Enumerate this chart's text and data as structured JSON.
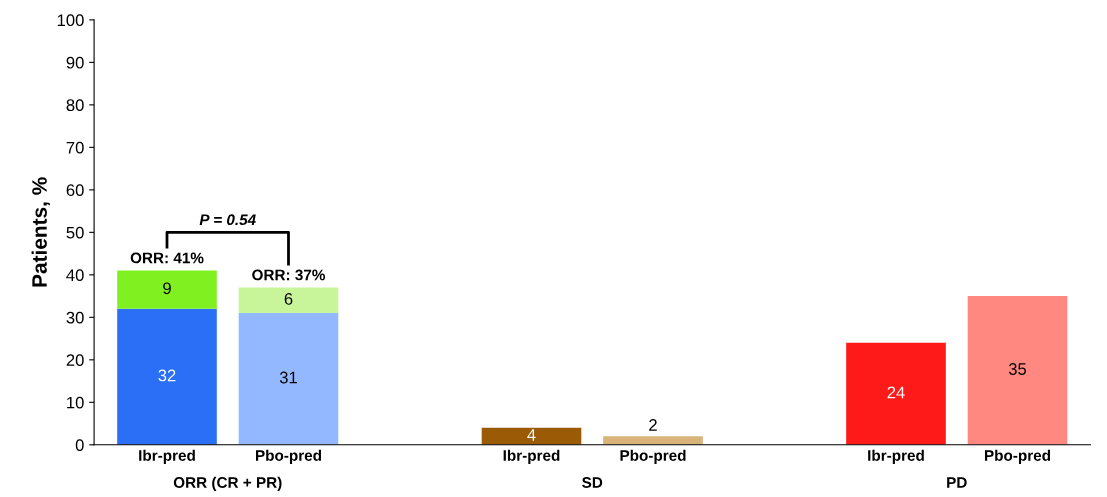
{
  "chart_data": {
    "type": "bar",
    "stacked": true,
    "ylabel": "Patients, %",
    "categories": [
      "Ibr-pred",
      "Pbo-pred",
      null,
      "Ibr-pred",
      "Pbo-pred",
      null,
      "Ibr-pred",
      "Pbo-pred"
    ],
    "series": [
      {
        "colors": [
          "#2a6ff5",
          "#94b8ff",
          null,
          "#9b5a06",
          "#d8b47a",
          null,
          "#ff1a1a",
          "#ff8880"
        ],
        "values": [
          32,
          31,
          null,
          4,
          2,
          null,
          24,
          35
        ]
      },
      {
        "colors": [
          "#80f020",
          "#c8f59a",
          null,
          null,
          null,
          null,
          null,
          null
        ],
        "values": [
          9,
          6,
          null,
          null,
          null,
          null,
          null,
          null
        ]
      }
    ],
    "totals": [
      "ORR: 41%",
      "ORR: 37%",
      null,
      null,
      null,
      null,
      null,
      null
    ],
    "data_labels": true,
    "annotations": [
      "ORR (CR + PR)",
      "SD",
      "PD",
      "P = 0.54"
    ],
    "ylim": [
      0,
      100
    ],
    "yticks": [
      0,
      10,
      20,
      30,
      40,
      50,
      60,
      70,
      80,
      90,
      100
    ],
    "grid": false,
    "legend": false
  }
}
